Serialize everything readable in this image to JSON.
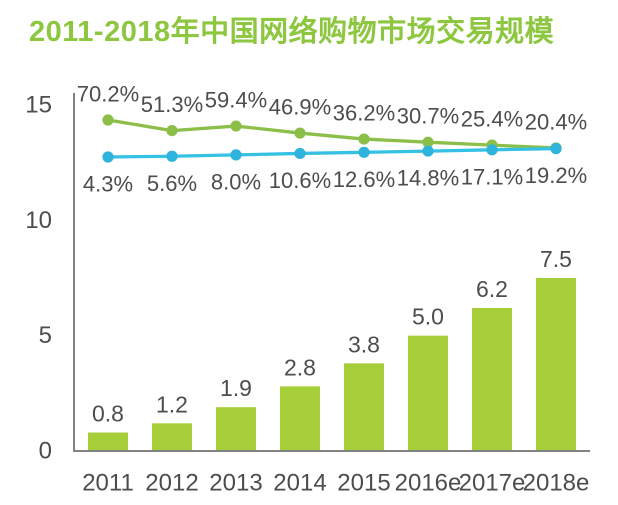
{
  "title": "2011-2018年中国网络购物市场交易规模",
  "colors": {
    "title_green": "#8dc63f",
    "bar_green": "#a6ce39",
    "line_green": "#8cbf4a",
    "line_blue": "#35c1e4",
    "dot_blue": "#2eb3dc",
    "label_text": "#4d4d4d",
    "axis_gray": "#828282",
    "background": "#ffffff"
  },
  "chart_data": {
    "type": "bar+line",
    "title": "2011-2018年中国网络购物市场交易规模",
    "categories": [
      "2011",
      "2012",
      "2013",
      "2014",
      "2015",
      "2016e",
      "2017e",
      "2018e"
    ],
    "bar_series": {
      "values": [
        0.8,
        1.2,
        1.9,
        2.8,
        3.8,
        5.0,
        6.2,
        7.5
      ],
      "labels": [
        "0.8",
        "1.2",
        "1.9",
        "2.8",
        "3.8",
        "5.0",
        "6.2",
        "7.5"
      ],
      "color": "#a6ce39"
    },
    "line_series": [
      {
        "values_percent": [
          70.2,
          51.3,
          59.4,
          46.9,
          36.2,
          30.7,
          25.4,
          20.4
        ],
        "labels": [
          "70.2%",
          "51.3%",
          "59.4%",
          "46.9%",
          "36.2%",
          "30.7%",
          "25.4%",
          "20.4%"
        ],
        "color": "#8cbf4a",
        "label_position": "above"
      },
      {
        "values_percent": [
          4.3,
          5.6,
          8.0,
          10.6,
          12.6,
          14.8,
          17.1,
          19.2
        ],
        "labels": [
          "4.3%",
          "5.6%",
          "8.0%",
          "10.6%",
          "12.6%",
          "14.8%",
          "17.1%",
          "19.2%"
        ],
        "color": "#35c1e4",
        "label_position": "below"
      }
    ],
    "y_axis": {
      "tick_labels": [
        "0",
        "5",
        "10",
        "15"
      ],
      "tick_values": [
        0,
        5,
        10,
        15
      ],
      "min": 0,
      "max": 15
    },
    "grid": false,
    "legend": "none"
  }
}
